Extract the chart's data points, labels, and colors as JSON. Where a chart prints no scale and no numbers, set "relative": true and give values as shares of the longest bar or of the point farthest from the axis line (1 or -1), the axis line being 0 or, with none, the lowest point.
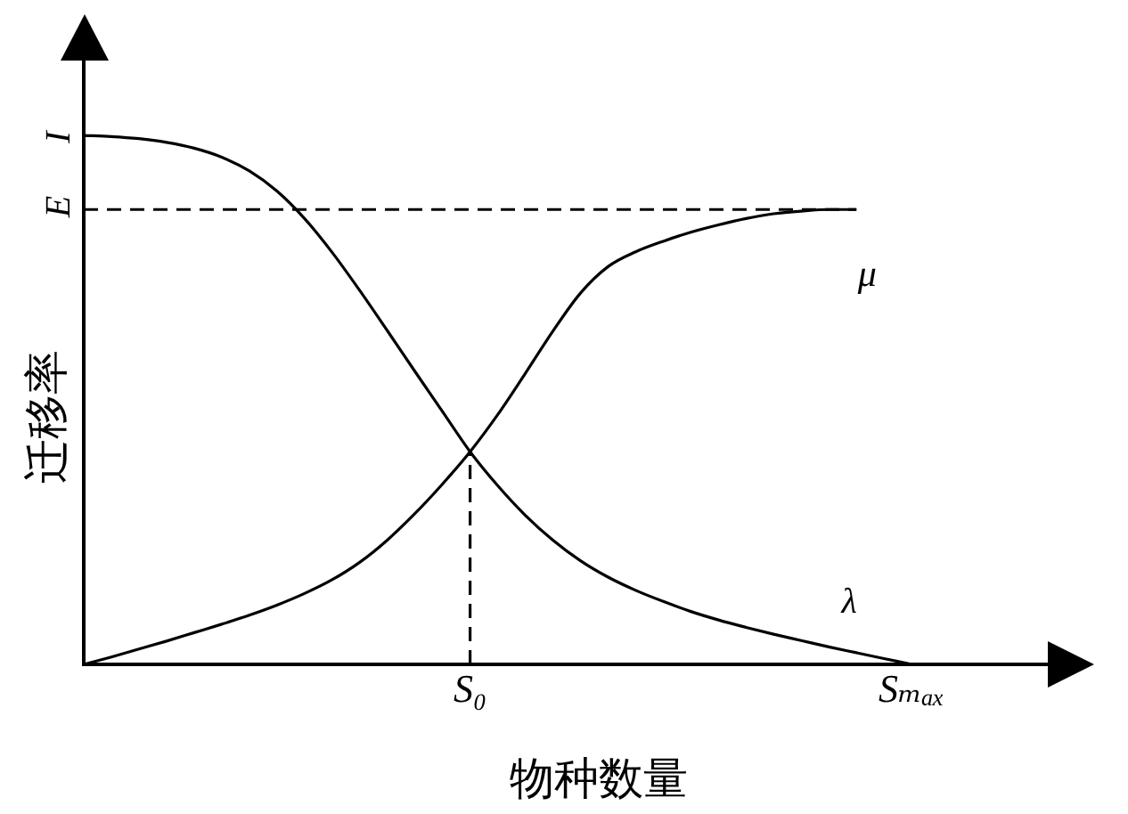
{
  "chart_data": {
    "type": "line",
    "relative": true,
    "xlabel": "物种数量",
    "ylabel": "迁移率",
    "categories": [
      null,
      null,
      null,
      null,
      null,
      null,
      null,
      null,
      null,
      null,
      null,
      null,
      null,
      null,
      "S₀",
      null,
      null,
      null,
      null,
      null,
      null,
      null,
      null,
      null,
      null,
      null,
      null,
      null,
      null,
      null,
      "Sₘₐₓ",
      null,
      null,
      null,
      null,
      null
    ],
    "annotations": [
      "I",
      "E"
    ],
    "series": [
      {
        "name": "λ",
        "color": "#000000",
        "values": [
          1,
          0.998,
          0.994,
          0.987,
          0.976,
          0.959,
          0.933,
          0.895,
          0.843,
          0.779,
          0.707,
          0.631,
          0.554,
          0.478,
          0.402,
          0.338,
          0.282,
          0.235,
          0.196,
          0.165,
          0.14,
          0.119,
          0.1,
          0.084,
          0.07,
          0.057,
          0.045,
          0.033,
          0.022,
          0.011,
          0,
          null,
          null,
          null,
          null,
          null
        ]
      },
      {
        "name": "μ",
        "color": "#000000",
        "values": [
          0,
          0.014,
          0.029,
          0.044,
          0.06,
          0.076,
          0.093,
          0.112,
          0.134,
          0.16,
          0.193,
          0.235,
          0.285,
          0.341,
          0.402,
          0.472,
          0.55,
          0.63,
          0.702,
          0.752,
          0.78,
          0.8,
          0.817,
          0.831,
          0.843,
          0.852,
          0.857,
          0.86,
          0.86,
          null,
          null,
          null,
          null,
          null,
          null,
          null
        ]
      },
      {
        "color": "#000000",
        "line_style": "dashed",
        "values": [
          0.86,
          0.86,
          0.86,
          0.86,
          0.86,
          0.86,
          0.86,
          0.86,
          0.86,
          0.86,
          0.86,
          0.86,
          0.86,
          0.86,
          0.86,
          0.86,
          0.86,
          0.86,
          0.86,
          0.86,
          0.86,
          0.86,
          0.86,
          0.86,
          0.86,
          0.86,
          0.86,
          0.86,
          0.86,
          null,
          null,
          null,
          null,
          null,
          null,
          null
        ]
      },
      {
        "color": "#000000",
        "line_style": "dashed",
        "x": [
          "S₀",
          "S₀"
        ],
        "values": [
          0,
          0.402
        ]
      }
    ]
  }
}
